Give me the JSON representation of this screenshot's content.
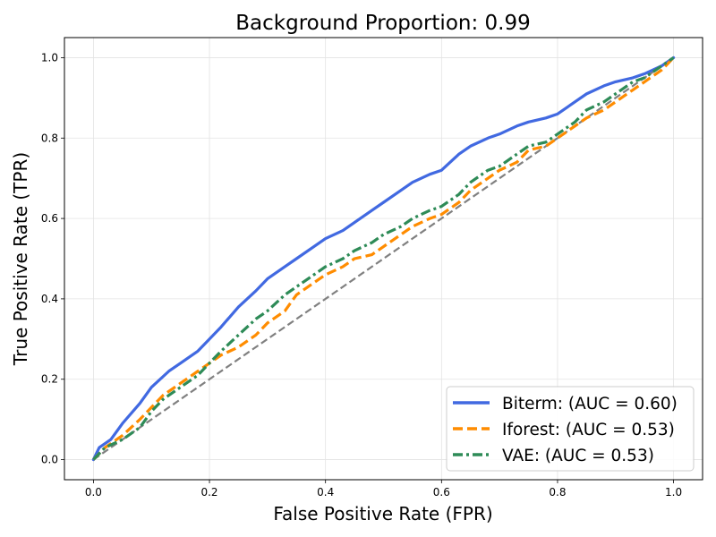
{
  "chart_data": {
    "type": "line",
    "title": "Background Proportion: 0.99",
    "xlabel": "False Positive Rate (FPR)",
    "ylabel": "True Positive Rate (TPR)",
    "xlim": [
      -0.05,
      1.05
    ],
    "ylim": [
      -0.05,
      1.05
    ],
    "xticks": [
      0.0,
      0.2,
      0.4,
      0.6,
      0.8,
      1.0
    ],
    "yticks": [
      0.0,
      0.2,
      0.4,
      0.6,
      0.8,
      1.0
    ],
    "xtick_labels": [
      "0.0",
      "0.2",
      "0.4",
      "0.6",
      "0.8",
      "1.0"
    ],
    "ytick_labels": [
      "0.0",
      "0.2",
      "0.4",
      "0.6",
      "0.8",
      "1.0"
    ],
    "grid": true,
    "legend_position": "lower-right",
    "series": [
      {
        "name": "Biterm: (AUC = 0.60)",
        "color": "#4169e1",
        "style": "solid",
        "x": [
          0.0,
          0.01,
          0.03,
          0.05,
          0.08,
          0.1,
          0.13,
          0.15,
          0.18,
          0.2,
          0.22,
          0.25,
          0.28,
          0.3,
          0.33,
          0.35,
          0.38,
          0.4,
          0.43,
          0.45,
          0.48,
          0.5,
          0.53,
          0.55,
          0.58,
          0.6,
          0.63,
          0.65,
          0.68,
          0.7,
          0.73,
          0.75,
          0.78,
          0.8,
          0.83,
          0.85,
          0.88,
          0.9,
          0.93,
          0.95,
          0.98,
          1.0
        ],
        "y": [
          0.0,
          0.03,
          0.05,
          0.09,
          0.14,
          0.18,
          0.22,
          0.24,
          0.27,
          0.3,
          0.33,
          0.38,
          0.42,
          0.45,
          0.48,
          0.5,
          0.53,
          0.55,
          0.57,
          0.59,
          0.62,
          0.64,
          0.67,
          0.69,
          0.71,
          0.72,
          0.76,
          0.78,
          0.8,
          0.81,
          0.83,
          0.84,
          0.85,
          0.86,
          0.89,
          0.91,
          0.93,
          0.94,
          0.95,
          0.96,
          0.98,
          1.0
        ]
      },
      {
        "name": "Iforest: (AUC = 0.53)",
        "color": "#ff8c00",
        "style": "dashed",
        "x": [
          0.0,
          0.02,
          0.05,
          0.08,
          0.1,
          0.12,
          0.15,
          0.18,
          0.2,
          0.22,
          0.25,
          0.28,
          0.3,
          0.33,
          0.35,
          0.38,
          0.4,
          0.43,
          0.45,
          0.48,
          0.5,
          0.53,
          0.55,
          0.58,
          0.6,
          0.63,
          0.65,
          0.68,
          0.7,
          0.73,
          0.75,
          0.78,
          0.8,
          0.83,
          0.85,
          0.88,
          0.9,
          0.93,
          0.95,
          0.98,
          1.0
        ],
        "y": [
          0.0,
          0.03,
          0.06,
          0.1,
          0.13,
          0.16,
          0.19,
          0.22,
          0.24,
          0.26,
          0.28,
          0.31,
          0.34,
          0.37,
          0.41,
          0.44,
          0.46,
          0.48,
          0.5,
          0.51,
          0.53,
          0.56,
          0.58,
          0.6,
          0.61,
          0.64,
          0.67,
          0.7,
          0.72,
          0.74,
          0.77,
          0.78,
          0.8,
          0.83,
          0.85,
          0.87,
          0.89,
          0.92,
          0.94,
          0.97,
          1.0
        ]
      },
      {
        "name": "VAE: (AUC = 0.53)",
        "color": "#2e8b57",
        "style": "dashdot",
        "x": [
          0.0,
          0.02,
          0.05,
          0.08,
          0.1,
          0.12,
          0.15,
          0.18,
          0.2,
          0.22,
          0.25,
          0.28,
          0.3,
          0.33,
          0.35,
          0.38,
          0.4,
          0.43,
          0.45,
          0.48,
          0.5,
          0.53,
          0.55,
          0.58,
          0.6,
          0.63,
          0.65,
          0.68,
          0.7,
          0.73,
          0.75,
          0.78,
          0.8,
          0.83,
          0.85,
          0.88,
          0.9,
          0.93,
          0.95,
          0.98,
          1.0
        ],
        "y": [
          0.0,
          0.03,
          0.05,
          0.08,
          0.12,
          0.15,
          0.18,
          0.21,
          0.24,
          0.27,
          0.31,
          0.35,
          0.37,
          0.41,
          0.43,
          0.46,
          0.48,
          0.5,
          0.52,
          0.54,
          0.56,
          0.58,
          0.6,
          0.62,
          0.63,
          0.66,
          0.69,
          0.72,
          0.73,
          0.76,
          0.78,
          0.79,
          0.81,
          0.84,
          0.87,
          0.89,
          0.91,
          0.94,
          0.95,
          0.98,
          1.0
        ]
      }
    ],
    "reference_line": {
      "x": [
        0.0,
        1.0
      ],
      "y": [
        0.0,
        1.0
      ],
      "color": "#808080",
      "style": "dashed"
    }
  }
}
